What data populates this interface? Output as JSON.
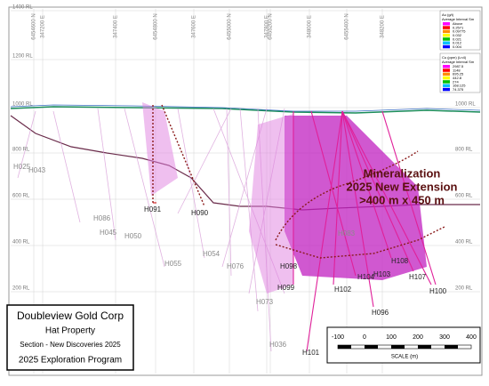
{
  "title_box": {
    "company": "Doubleview Gold Corp",
    "property": "Hat Property",
    "section": "Section - New Discoveries 2025",
    "program": "2025 Exploration Program"
  },
  "annotation": {
    "line1": "Mineralization",
    "line2": "2025 New Extension",
    "line3": ">400 m x  450 m"
  },
  "scale": {
    "ticks": [
      "-100",
      "0",
      "100",
      "200",
      "300",
      "400"
    ],
    "label": "SCALE (m)"
  },
  "elevations_left": [
    "1400 RL",
    "1200 RL",
    "1000 RL",
    "800 RL",
    "600 RL",
    "400 RL",
    "200 RL"
  ],
  "elevations_right": [
    "1000 RL",
    "800 RL",
    "600 RL",
    "400 RL",
    "200 RL"
  ],
  "grid_labels": [
    "6454600 N",
    "347200 E",
    "347400 E",
    "6454800 N",
    "347600 E",
    "6455000 N",
    "347800 E",
    "6455200 N",
    "348000 E",
    "6455400 N",
    "348200 E"
  ],
  "legend_au": {
    "title": "Au (g/t)",
    "subtitle": "Average Interval Sm",
    "values": [
      "Above",
      "0.2571",
      "0.09775",
      "0.032",
      "0.021",
      "0.012",
      "0.004"
    ]
  },
  "legend_cu": {
    "title": "Cu (ppm) (Ln4)",
    "subtitle": "Average Interval Sm",
    "values": [
      "2987.5",
      "1148",
      "695.25",
      "442.8",
      "274",
      "168.125",
      "74.375"
    ]
  },
  "holes_faded": [
    "H025",
    "H043",
    "H086",
    "H045",
    "H050",
    "H055",
    "H054",
    "H076",
    "H073",
    "H036",
    "H083"
  ],
  "holes": [
    "H091",
    "H090",
    "H099",
    "H098",
    "H102",
    "H101",
    "H096",
    "H100",
    "H107",
    "H108",
    "H103",
    "H104"
  ]
}
